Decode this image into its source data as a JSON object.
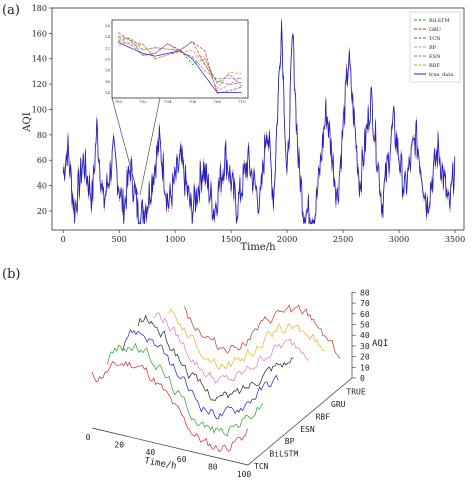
{
  "panel_labels": {
    "a": "(a)",
    "b": "(b)"
  },
  "chart_data": [
    {
      "type": "line",
      "xlabel": "Time/h",
      "ylabel": "AQI",
      "xlim": [
        -100,
        3580
      ],
      "ylim": [
        5,
        180
      ],
      "xticks": [
        0,
        500,
        1000,
        1500,
        2000,
        2500,
        3000,
        3500
      ],
      "yticks": [
        20,
        40,
        60,
        80,
        100,
        120,
        140,
        160,
        180
      ],
      "legend_position": "top-right",
      "legend": [
        {
          "name": "BiLSTM",
          "color": "#2ca02c",
          "dash": "3,1.5"
        },
        {
          "name": "GRU",
          "color": "#d62728",
          "dash": "3,1.5"
        },
        {
          "name": "TCN",
          "color": "#8c564b",
          "dash": "3,1.5"
        },
        {
          "name": "BP",
          "color": "#e377c2",
          "dash": "3,1.5"
        },
        {
          "name": "ESN",
          "color": "#9467bd",
          "dash": "3,1.5"
        },
        {
          "name": "RBF",
          "color": "#e08a3a",
          "dash": "3,1.5"
        },
        {
          "name": "true_data",
          "color": "#1f1fcc",
          "dash": ""
        }
      ],
      "segments": [
        {
          "x": 0,
          "y": 50
        },
        {
          "x": 40,
          "y": 70
        },
        {
          "x": 100,
          "y": 20
        },
        {
          "x": 180,
          "y": 60
        },
        {
          "x": 260,
          "y": 30
        },
        {
          "x": 300,
          "y": 85
        },
        {
          "x": 360,
          "y": 25
        },
        {
          "x": 450,
          "y": 65
        },
        {
          "x": 540,
          "y": 20
        },
        {
          "x": 600,
          "y": 55
        },
        {
          "x": 680,
          "y": 12
        },
        {
          "x": 760,
          "y": 30
        },
        {
          "x": 860,
          "y": 75
        },
        {
          "x": 940,
          "y": 25
        },
        {
          "x": 1050,
          "y": 60
        },
        {
          "x": 1150,
          "y": 18
        },
        {
          "x": 1250,
          "y": 55
        },
        {
          "x": 1350,
          "y": 20
        },
        {
          "x": 1450,
          "y": 65
        },
        {
          "x": 1550,
          "y": 22
        },
        {
          "x": 1650,
          "y": 60
        },
        {
          "x": 1760,
          "y": 25
        },
        {
          "x": 1820,
          "y": 90
        },
        {
          "x": 1880,
          "y": 30
        },
        {
          "x": 1950,
          "y": 170
        },
        {
          "x": 2000,
          "y": 40
        },
        {
          "x": 2050,
          "y": 160
        },
        {
          "x": 2100,
          "y": 60
        },
        {
          "x": 2150,
          "y": 20
        },
        {
          "x": 2250,
          "y": 18
        },
        {
          "x": 2350,
          "y": 100
        },
        {
          "x": 2450,
          "y": 30
        },
        {
          "x": 2550,
          "y": 140
        },
        {
          "x": 2650,
          "y": 40
        },
        {
          "x": 2750,
          "y": 110
        },
        {
          "x": 2850,
          "y": 25
        },
        {
          "x": 2950,
          "y": 90
        },
        {
          "x": 3050,
          "y": 35
        },
        {
          "x": 3150,
          "y": 80
        },
        {
          "x": 3250,
          "y": 25
        },
        {
          "x": 3350,
          "y": 70
        },
        {
          "x": 3450,
          "y": 20
        },
        {
          "x": 3500,
          "y": 60
        }
      ],
      "inset": {
        "xticks": [
          700,
          702,
          704,
          706,
          708,
          710
        ],
        "yticks": [
          14,
          16,
          18,
          20,
          22,
          24,
          26
        ],
        "xlim": [
          699.5,
          710.5
        ],
        "ylim": [
          13,
          27
        ],
        "x": [
          700,
          701,
          702,
          703,
          704,
          705,
          706,
          707,
          708,
          709,
          710
        ],
        "true_data": [
          23,
          22,
          21,
          20.5,
          21,
          21.5,
          20,
          17,
          14,
          14,
          14
        ]
      }
    },
    {
      "type": "line3d",
      "xlabel": "Time/h",
      "ylabel": "",
      "zlabel": "AQI",
      "xticks": [
        0,
        20,
        40,
        60,
        80,
        100
      ],
      "zticks": [
        0,
        10,
        20,
        30,
        40,
        50,
        60,
        70,
        80
      ],
      "series_axis": [
        "TCN",
        "BiLSTM",
        "BP",
        "ESN",
        "RBF",
        "GRU",
        "TRUE"
      ],
      "series_colors": [
        "#d62728",
        "#2ca02c",
        "#1f1fcc",
        "#222222",
        "#e377c2",
        "#f2b01e",
        "#c0392b"
      ]
    }
  ]
}
